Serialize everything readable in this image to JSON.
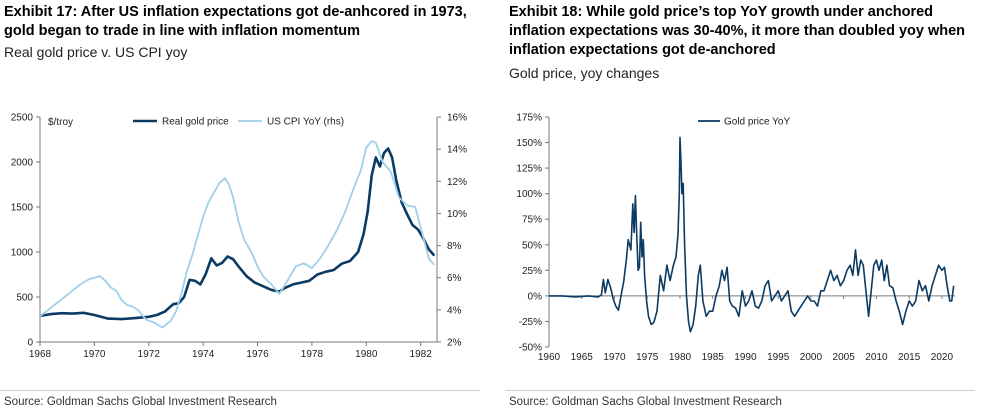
{
  "colors": {
    "navy": "#0b3a63",
    "light_blue": "#9fd0ea",
    "axis": "#7a7a7a"
  },
  "charts": {
    "left": {
      "title_lines": [
        "Exhibit 17: After US inflation expectations got de-anhcored in 1973,",
        "gold began to trade in line with inflation momentum"
      ],
      "subtitle": "Real gold price v. US CPI yoy",
      "source": "Source: Goldman Sachs Global Investment Research"
    },
    "right": {
      "title_lines": [
        "Exhibit 18: While gold price’s top YoY growth under anchored",
        "inflation expectations was 30-40%, it more than doubled yoy when",
        "inflation expectations got de-anchored"
      ],
      "subtitle": "Gold price, yoy changes",
      "source": "Source: Goldman Sachs Global Investment Research"
    }
  },
  "chart_data": [
    {
      "type": "line",
      "title": "Exhibit 17: After US inflation expectations got de-anhcored in 1973, gold began to trade in line with inflation momentum",
      "subtitle": "Real gold price v. US CPI yoy",
      "xlim": [
        1968,
        1982.6
      ],
      "x_ticks": [
        "1968",
        "1970",
        "1972",
        "1974",
        "1976",
        "1978",
        "1980",
        "1982"
      ],
      "ylabel_left": "$/troy",
      "ylim_left": [
        0,
        2500
      ],
      "y_ticks_left": [
        "0",
        "500",
        "1000",
        "1500",
        "2000",
        "2500"
      ],
      "ylim_right": [
        2,
        16
      ],
      "y_ticks_right": [
        "2%",
        "4%",
        "6%",
        "8%",
        "10%",
        "12%",
        "14%",
        "16%"
      ],
      "legend_position": "top-center",
      "series": [
        {
          "name": "Real gold price",
          "axis": "left",
          "color": "#0b3a63",
          "x": [
            1968.0,
            1968.4,
            1968.8,
            1969.2,
            1969.6,
            1970.0,
            1970.5,
            1971.0,
            1971.5,
            1972.0,
            1972.3,
            1972.6,
            1972.9,
            1973.1,
            1973.3,
            1973.5,
            1973.7,
            1973.9,
            1974.1,
            1974.3,
            1974.5,
            1974.7,
            1974.9,
            1975.1,
            1975.3,
            1975.6,
            1975.9,
            1976.2,
            1976.5,
            1976.8,
            1977.0,
            1977.3,
            1977.6,
            1977.9,
            1978.2,
            1978.5,
            1978.8,
            1979.1,
            1979.4,
            1979.7,
            1979.9,
            1980.05,
            1980.2,
            1980.35,
            1980.5,
            1980.65,
            1980.8,
            1980.95,
            1981.1,
            1981.3,
            1981.5,
            1981.7,
            1981.9,
            1982.1,
            1982.3,
            1982.5
          ],
          "values": [
            290,
            310,
            320,
            315,
            325,
            300,
            260,
            255,
            265,
            280,
            300,
            340,
            420,
            430,
            500,
            690,
            680,
            640,
            760,
            930,
            850,
            880,
            950,
            920,
            840,
            730,
            660,
            620,
            580,
            560,
            600,
            640,
            660,
            680,
            750,
            780,
            800,
            870,
            900,
            1000,
            1200,
            1450,
            1850,
            2050,
            1950,
            2100,
            2150,
            2050,
            1800,
            1550,
            1420,
            1300,
            1250,
            1150,
            1030,
            960
          ]
        },
        {
          "name": "US CPI YoY (rhs)",
          "axis": "right",
          "color": "#9fd0ea",
          "x": [
            1968.0,
            1968.3,
            1968.6,
            1968.9,
            1969.2,
            1969.5,
            1969.8,
            1970.0,
            1970.2,
            1970.4,
            1970.6,
            1970.8,
            1971.0,
            1971.2,
            1971.4,
            1971.6,
            1971.9,
            1972.2,
            1972.5,
            1972.8,
            1973.0,
            1973.2,
            1973.4,
            1973.6,
            1973.8,
            1974.0,
            1974.2,
            1974.4,
            1974.6,
            1974.8,
            1974.95,
            1975.1,
            1975.3,
            1975.5,
            1975.8,
            1976.0,
            1976.2,
            1976.5,
            1976.8,
            1977.1,
            1977.4,
            1977.7,
            1978.0,
            1978.3,
            1978.6,
            1978.9,
            1979.2,
            1979.5,
            1979.8,
            1980.0,
            1980.2,
            1980.35,
            1980.6,
            1980.9,
            1981.2,
            1981.5,
            1981.8,
            1982.1,
            1982.3,
            1982.5
          ],
          "values": [
            3.6,
            4.0,
            4.4,
            4.8,
            5.2,
            5.6,
            5.9,
            6.0,
            6.1,
            5.8,
            5.4,
            5.2,
            4.6,
            4.3,
            4.2,
            4.0,
            3.4,
            3.2,
            2.9,
            3.3,
            3.9,
            5.0,
            6.4,
            7.4,
            8.6,
            9.8,
            10.7,
            11.3,
            11.9,
            12.2,
            11.8,
            11.0,
            9.5,
            8.4,
            7.5,
            6.7,
            6.1,
            5.6,
            5.0,
            5.8,
            6.7,
            6.9,
            6.6,
            7.2,
            8.0,
            8.9,
            10.0,
            11.4,
            12.7,
            14.1,
            14.5,
            14.4,
            13.2,
            12.6,
            11.0,
            10.5,
            10.4,
            8.5,
            7.2,
            6.8
          ]
        }
      ]
    },
    {
      "type": "line",
      "title": "Exhibit 18: While gold price’s top YoY growth under anchored inflation expectations was 30-40%, it more than doubled yoy when inflation expectations got de-anchored",
      "subtitle": "Gold price, yoy changes",
      "xlim": [
        1960,
        2022
      ],
      "x_ticks": [
        "1960",
        "1965",
        "1970",
        "1975",
        "1980",
        "1985",
        "1990",
        "1995",
        "2000",
        "2005",
        "2010",
        "2015",
        "2020"
      ],
      "ylim": [
        -50,
        175
      ],
      "y_ticks": [
        "175%",
        "150%",
        "125%",
        "100%",
        "75%",
        "50%",
        "25%",
        "0%",
        "-25%",
        "-50%"
      ],
      "legend_position": "top-left",
      "series": [
        {
          "name": "Gold price YoY",
          "color": "#0b3a63",
          "x": [
            1960,
            1962,
            1964,
            1966,
            1967.5,
            1968.0,
            1968.3,
            1968.6,
            1969.0,
            1969.4,
            1969.8,
            1970.2,
            1970.6,
            1971.0,
            1971.4,
            1971.8,
            1972.1,
            1972.5,
            1972.8,
            1973.0,
            1973.2,
            1973.4,
            1973.6,
            1973.8,
            1974.0,
            1974.2,
            1974.4,
            1974.6,
            1974.9,
            1975.2,
            1975.6,
            1976.0,
            1976.5,
            1977.0,
            1977.5,
            1978.0,
            1978.5,
            1979.0,
            1979.4,
            1979.7,
            1979.9,
            1980.0,
            1980.15,
            1980.3,
            1980.5,
            1980.7,
            1981.0,
            1981.3,
            1981.6,
            1982.0,
            1982.4,
            1982.8,
            1983.1,
            1983.5,
            1984.0,
            1984.5,
            1985.0,
            1985.5,
            1986.0,
            1986.4,
            1986.8,
            1987.2,
            1987.6,
            1988.0,
            1988.5,
            1989.0,
            1989.5,
            1990.0,
            1990.5,
            1991.0,
            1991.5,
            1992.0,
            1992.5,
            1993.0,
            1993.5,
            1994.0,
            1994.5,
            1995.0,
            1995.5,
            1996.0,
            1996.5,
            1997.0,
            1997.5,
            1998.0,
            1998.5,
            1999.0,
            1999.5,
            2000.0,
            2000.5,
            2001.0,
            2001.5,
            2002.0,
            2002.5,
            2003.0,
            2003.5,
            2004.0,
            2004.5,
            2005.0,
            2005.5,
            2006.0,
            2006.4,
            2006.8,
            2007.2,
            2007.6,
            2008.0,
            2008.4,
            2008.8,
            2009.2,
            2009.6,
            2010.0,
            2010.4,
            2010.8,
            2011.2,
            2011.6,
            2012.0,
            2012.5,
            2013.0,
            2013.5,
            2014.0,
            2014.5,
            2015.0,
            2015.5,
            2016.0,
            2016.5,
            2017.0,
            2017.5,
            2018.0,
            2018.5,
            2019.0,
            2019.5,
            2020.0,
            2020.4,
            2020.8,
            2021.2,
            2021.5,
            2021.8
          ],
          "values": [
            0,
            0,
            -1,
            0,
            -1,
            1,
            16,
            3,
            16,
            8,
            -3,
            -10,
            -14,
            0,
            14,
            35,
            55,
            45,
            90,
            62,
            98,
            60,
            25,
            28,
            72,
            38,
            55,
            20,
            -5,
            -20,
            -28,
            -26,
            -15,
            20,
            5,
            30,
            15,
            30,
            38,
            60,
            100,
            155,
            130,
            100,
            110,
            50,
            0,
            -25,
            -35,
            -28,
            -10,
            20,
            30,
            -5,
            -20,
            -15,
            -15,
            0,
            10,
            25,
            15,
            28,
            -5,
            -10,
            -12,
            -20,
            5,
            -10,
            -5,
            5,
            -10,
            -12,
            -5,
            10,
            15,
            -5,
            0,
            5,
            -5,
            0,
            5,
            -15,
            -20,
            -15,
            -10,
            -5,
            0,
            -5,
            -5,
            -10,
            5,
            5,
            15,
            25,
            15,
            20,
            10,
            15,
            25,
            30,
            20,
            45,
            20,
            35,
            30,
            5,
            -20,
            5,
            30,
            35,
            25,
            35,
            15,
            30,
            10,
            8,
            -5,
            -15,
            -28,
            -15,
            -5,
            -10,
            -5,
            15,
            5,
            10,
            -5,
            10,
            20,
            30,
            25,
            28,
            10,
            -5,
            -5,
            10
          ]
        }
      ]
    }
  ]
}
